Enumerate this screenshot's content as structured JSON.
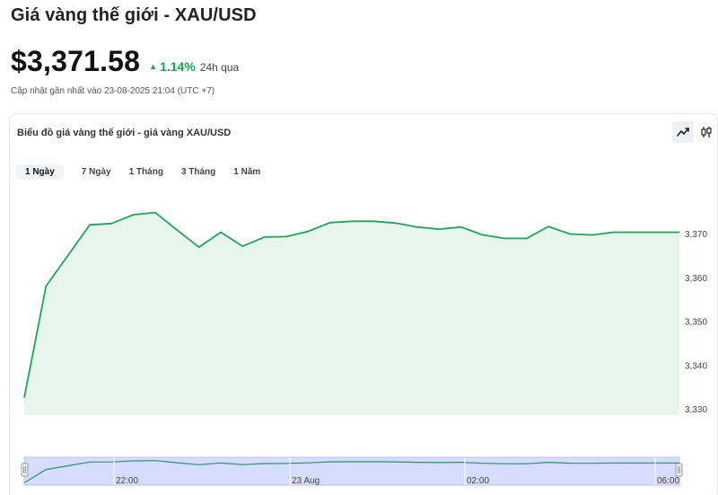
{
  "header": {
    "title": "Giá vàng thế giới - XAU/USD",
    "price": "$3,371.58",
    "change": "1.14%",
    "change_period": "24h qua",
    "updated": "Cập nhật gần nhất vào 23-08-2025 21:04 (UTC +7)"
  },
  "colors": {
    "accent": "#16a34a",
    "line": "#22a35a",
    "area": "#e8f5ec",
    "navigator": "#d6dcfb"
  },
  "card": {
    "title": "Biểu đồ giá vàng thế giới - giá vàng XAU/USD",
    "chart_type_buttons": [
      {
        "icon": "line-chart-icon",
        "active": true
      },
      {
        "icon": "candlestick-icon",
        "active": false
      }
    ],
    "tabs": [
      {
        "label": "1 Ngày",
        "active": true
      },
      {
        "label": "7 Ngày",
        "active": false
      },
      {
        "label": "1 Tháng",
        "active": false
      },
      {
        "label": "3 Tháng",
        "active": false
      },
      {
        "label": "1 Năm",
        "active": false
      }
    ]
  },
  "chart_data": {
    "type": "area",
    "ylim": [
      3330,
      3376
    ],
    "y_ticks": [
      3330,
      3340,
      3350,
      3360,
      3370
    ],
    "y_tick_labels": [
      "3,330",
      "3,340",
      "3,350",
      "3,360",
      "3,370"
    ],
    "values": [
      3332.5,
      3358,
      3365,
      3372,
      3372.3,
      3374.3,
      3374.8,
      3370.8,
      3366.9,
      3370.3,
      3367.1,
      3369.2,
      3369.3,
      3370.5,
      3372.5,
      3372.8,
      3372.8,
      3372.4,
      3371.5,
      3371,
      3371.5,
      3369.7,
      3368.9,
      3368.9,
      3371.6,
      3369.9,
      3369.7,
      3370.3,
      3370.3,
      3370.3,
      3370.3
    ],
    "navigator_ticks": [
      "22:00",
      "23 Aug",
      "02:00",
      "06:00"
    ],
    "grid": false,
    "legend": "none"
  }
}
